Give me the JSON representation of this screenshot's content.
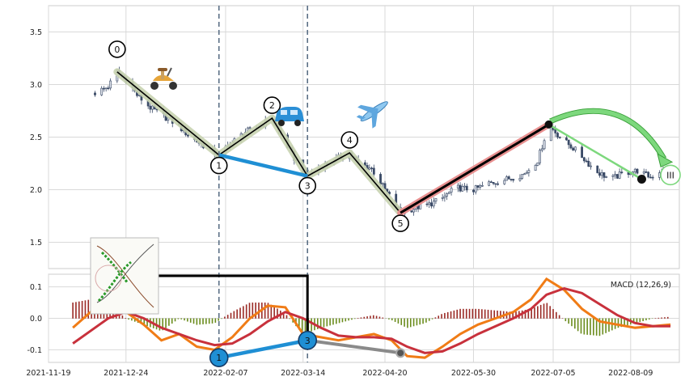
{
  "chart_data": [
    {
      "type": "candlestick",
      "panel": "price",
      "ylim": [
        1.25,
        3.75
      ],
      "yticks": [
        "1.5",
        "2.0",
        "2.5",
        "3.0",
        "3.5"
      ],
      "grid": true,
      "price_path": [
        [
          "2021-12-10",
          2.92
        ],
        [
          "2021-12-16",
          2.98
        ],
        [
          "2021-12-20",
          3.12
        ],
        [
          "2021-12-24",
          3.05
        ],
        [
          "2021-12-29",
          2.9
        ],
        [
          "2022-01-04",
          2.78
        ],
        [
          "2022-01-10",
          2.7
        ],
        [
          "2022-01-16",
          2.62
        ],
        [
          "2022-01-22",
          2.5
        ],
        [
          "2022-01-28",
          2.42
        ],
        [
          "2022-02-04",
          2.33
        ],
        [
          "2022-02-10",
          2.45
        ],
        [
          "2022-02-16",
          2.55
        ],
        [
          "2022-02-22",
          2.6
        ],
        [
          "2022-02-28",
          2.68
        ],
        [
          "2022-03-04",
          2.52
        ],
        [
          "2022-03-10",
          2.3
        ],
        [
          "2022-03-16",
          2.13
        ],
        [
          "2022-03-22",
          2.22
        ],
        [
          "2022-03-28",
          2.28
        ],
        [
          "2022-04-04",
          2.35
        ],
        [
          "2022-04-08",
          2.25
        ],
        [
          "2022-04-14",
          2.2
        ],
        [
          "2022-04-20",
          2.0
        ],
        [
          "2022-04-27",
          1.78
        ],
        [
          "2022-05-04",
          1.83
        ],
        [
          "2022-05-10",
          1.86
        ],
        [
          "2022-05-16",
          1.92
        ],
        [
          "2022-05-22",
          2.02
        ],
        [
          "2022-05-30",
          2.0
        ],
        [
          "2022-06-06",
          2.06
        ],
        [
          "2022-06-14",
          2.1
        ],
        [
          "2022-06-22",
          2.15
        ],
        [
          "2022-06-28",
          2.28
        ],
        [
          "2022-07-03",
          2.62
        ],
        [
          "2022-07-08",
          2.5
        ],
        [
          "2022-07-16",
          2.36
        ],
        [
          "2022-07-24",
          2.18
        ],
        [
          "2022-07-31",
          2.1
        ],
        [
          "2022-08-06",
          2.16
        ],
        [
          "2022-08-12",
          2.18
        ],
        [
          "2022-08-18",
          2.12
        ],
        [
          "2022-08-24",
          2.2
        ]
      ],
      "wave_points": [
        {
          "label": "0",
          "date": "2021-12-20",
          "price": 3.12
        },
        {
          "label": "1",
          "date": "2022-02-04",
          "price": 2.33
        },
        {
          "label": "2",
          "date": "2022-02-28",
          "price": 2.68
        },
        {
          "label": "3",
          "date": "2022-03-16",
          "price": 2.13
        },
        {
          "label": "4",
          "date": "2022-04-04",
          "price": 2.35
        },
        {
          "label": "5",
          "date": "2022-04-27",
          "price": 1.78
        }
      ],
      "target_line": {
        "from": [
          "2022-04-27",
          1.78
        ],
        "to": [
          "2022-07-03",
          2.62
        ]
      },
      "projection": {
        "from": [
          "2022-07-03",
          2.62
        ],
        "to": [
          "2022-08-14",
          2.1
        ]
      },
      "current_price": {
        "date": "2022-08-14",
        "price": 2.1
      },
      "end_marker": {
        "label": "III",
        "date": "2022-08-27",
        "price": 2.14
      },
      "divergence_line": {
        "from": [
          "2022-02-04",
          2.33
        ],
        "to": [
          "2022-03-16",
          2.13
        ]
      },
      "vlines": [
        "2022-02-04",
        "2022-03-16"
      ]
    },
    {
      "type": "macd",
      "panel": "indicator",
      "legend": "MACD (12,26,9)",
      "ylim": [
        -0.14,
        0.14
      ],
      "yticks": [
        "0.1",
        "0.0",
        "-0.1"
      ],
      "macd_line": [
        [
          "2021-11-30",
          -0.03
        ],
        [
          "2021-12-08",
          0.02
        ],
        [
          "2021-12-16",
          0.045
        ],
        [
          "2021-12-24",
          0.02
        ],
        [
          "2022-01-01",
          -0.02
        ],
        [
          "2022-01-09",
          -0.07
        ],
        [
          "2022-01-17",
          -0.05
        ],
        [
          "2022-01-25",
          -0.09
        ],
        [
          "2022-02-02",
          -0.1
        ],
        [
          "2022-02-10",
          -0.06
        ],
        [
          "2022-02-18",
          0.0
        ],
        [
          "2022-02-26",
          0.04
        ],
        [
          "2022-03-06",
          0.035
        ],
        [
          "2022-03-14",
          -0.05
        ],
        [
          "2022-03-22",
          -0.06
        ],
        [
          "2022-03-30",
          -0.07
        ],
        [
          "2022-04-07",
          -0.06
        ],
        [
          "2022-04-15",
          -0.05
        ],
        [
          "2022-04-23",
          -0.07
        ],
        [
          "2022-04-30",
          -0.12
        ],
        [
          "2022-05-08",
          -0.125
        ],
        [
          "2022-05-16",
          -0.09
        ],
        [
          "2022-05-24",
          -0.05
        ],
        [
          "2022-06-01",
          -0.02
        ],
        [
          "2022-06-09",
          0.0
        ],
        [
          "2022-06-17",
          0.02
        ],
        [
          "2022-06-25",
          0.06
        ],
        [
          "2022-07-02",
          0.125
        ],
        [
          "2022-07-10",
          0.09
        ],
        [
          "2022-07-18",
          0.03
        ],
        [
          "2022-07-26",
          -0.01
        ],
        [
          "2022-08-03",
          -0.02
        ],
        [
          "2022-08-11",
          -0.03
        ],
        [
          "2022-08-19",
          -0.025
        ],
        [
          "2022-08-27",
          -0.02
        ]
      ],
      "signal_line": [
        [
          "2021-11-30",
          -0.08
        ],
        [
          "2021-12-08",
          -0.04
        ],
        [
          "2021-12-16",
          0.0
        ],
        [
          "2021-12-24",
          0.02
        ],
        [
          "2022-01-01",
          0.0
        ],
        [
          "2022-01-09",
          -0.03
        ],
        [
          "2022-01-17",
          -0.05
        ],
        [
          "2022-01-25",
          -0.07
        ],
        [
          "2022-02-02",
          -0.085
        ],
        [
          "2022-02-10",
          -0.08
        ],
        [
          "2022-02-18",
          -0.05
        ],
        [
          "2022-02-26",
          -0.01
        ],
        [
          "2022-03-06",
          0.02
        ],
        [
          "2022-03-14",
          0.0
        ],
        [
          "2022-03-22",
          -0.03
        ],
        [
          "2022-03-30",
          -0.055
        ],
        [
          "2022-04-07",
          -0.06
        ],
        [
          "2022-04-15",
          -0.06
        ],
        [
          "2022-04-23",
          -0.065
        ],
        [
          "2022-04-30",
          -0.09
        ],
        [
          "2022-05-08",
          -0.11
        ],
        [
          "2022-05-16",
          -0.105
        ],
        [
          "2022-05-24",
          -0.08
        ],
        [
          "2022-06-01",
          -0.05
        ],
        [
          "2022-06-09",
          -0.025
        ],
        [
          "2022-06-17",
          0.0
        ],
        [
          "2022-06-25",
          0.03
        ],
        [
          "2022-07-02",
          0.075
        ],
        [
          "2022-07-10",
          0.095
        ],
        [
          "2022-07-18",
          0.08
        ],
        [
          "2022-07-26",
          0.045
        ],
        [
          "2022-08-03",
          0.01
        ],
        [
          "2022-08-11",
          -0.015
        ],
        [
          "2022-08-19",
          -0.025
        ],
        [
          "2022-08-27",
          -0.025
        ]
      ],
      "divergence_points": [
        {
          "label": "1",
          "date": "2022-02-04",
          "value": -0.125
        },
        {
          "label": "3",
          "date": "2022-03-16",
          "value": -0.07
        }
      ],
      "grey_line_end": {
        "date": "2022-04-27",
        "value": -0.11
      }
    }
  ],
  "x_axis": {
    "ticks": [
      "2021-11-19",
      "2021-12-24",
      "2022-02-07",
      "2022-03-14",
      "2022-04-20",
      "2022-05-30",
      "2022-07-05",
      "2022-08-09"
    ]
  },
  "colors": {
    "up": "#e0e4ec",
    "down": "#3a4a66",
    "wave_highlight": "#c8d3b0",
    "wave_line": "#000000",
    "divergence": "#1f8fd4",
    "target_highlight": "#e89090",
    "projection": "#7dd87d",
    "macd": "#f07c16",
    "signal": "#c8313c",
    "hist_pos": "#9a2a25",
    "hist_neg": "#6a8c1c",
    "vline": "#5b6f85"
  },
  "icons": [
    "scooter-icon",
    "car-icon",
    "airplane-icon",
    "macd-thumbnail-icon"
  ]
}
